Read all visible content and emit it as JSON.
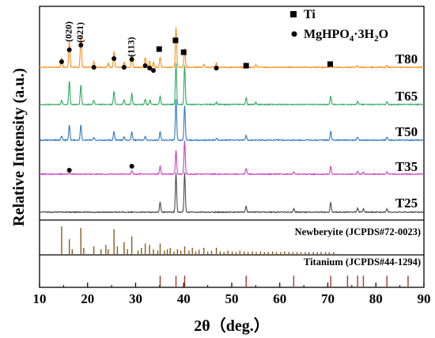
{
  "chart_data": {
    "type": "line",
    "xlabel": "2θ（deg.）",
    "ylabel": "Relative Intensity (a.u.)",
    "xlim": [
      10,
      90
    ],
    "x_ticks": [
      "10",
      "20",
      "30",
      "40",
      "50",
      "60",
      "70",
      "80",
      "90"
    ],
    "legend": [
      {
        "name": "Ti",
        "marker": "square"
      },
      {
        "name": "MgHPO4·3H2O",
        "marker": "circle"
      }
    ],
    "series": [
      {
        "name": "T80",
        "color": "#ff8c1a",
        "peaks": [
          {
            "x": 14.6,
            "h": 0.2
          },
          {
            "x": 16.2,
            "h": 0.55
          },
          {
            "x": 18.6,
            "h": 0.7
          },
          {
            "x": 21.3,
            "h": 0.12
          },
          {
            "x": 24.3,
            "h": 0.08
          },
          {
            "x": 25.5,
            "h": 0.35
          },
          {
            "x": 27.6,
            "h": 0.12
          },
          {
            "x": 29.2,
            "h": 0.28
          },
          {
            "x": 32.0,
            "h": 0.2
          },
          {
            "x": 32.9,
            "h": 0.14
          },
          {
            "x": 33.7,
            "h": 0.1
          },
          {
            "x": 35.1,
            "h": 0.22
          },
          {
            "x": 38.4,
            "h": 0.85
          },
          {
            "x": 40.2,
            "h": 0.4
          },
          {
            "x": 44.2,
            "h": 0.07
          },
          {
            "x": 46.8,
            "h": 0.09
          },
          {
            "x": 53.0,
            "h": 0.08
          },
          {
            "x": 55.0,
            "h": 0.05
          },
          {
            "x": 70.6,
            "h": 0.12
          },
          {
            "x": 76.2,
            "h": 0.04
          },
          {
            "x": 82.3,
            "h": 0.04
          }
        ]
      },
      {
        "name": "T65",
        "color": "#2eaa5c",
        "peaks": [
          {
            "x": 14.6,
            "h": 0.1
          },
          {
            "x": 16.2,
            "h": 0.55
          },
          {
            "x": 18.6,
            "h": 0.45
          },
          {
            "x": 21.3,
            "h": 0.1
          },
          {
            "x": 25.5,
            "h": 0.3
          },
          {
            "x": 27.6,
            "h": 0.1
          },
          {
            "x": 29.2,
            "h": 0.25
          },
          {
            "x": 32.0,
            "h": 0.12
          },
          {
            "x": 33.0,
            "h": 0.1
          },
          {
            "x": 35.1,
            "h": 0.2
          },
          {
            "x": 38.4,
            "h": 0.95
          },
          {
            "x": 40.2,
            "h": 0.9
          },
          {
            "x": 46.8,
            "h": 0.05
          },
          {
            "x": 53.0,
            "h": 0.15
          },
          {
            "x": 55.0,
            "h": 0.05
          },
          {
            "x": 70.6,
            "h": 0.2
          },
          {
            "x": 76.2,
            "h": 0.07
          },
          {
            "x": 82.3,
            "h": 0.07
          }
        ]
      },
      {
        "name": "T50",
        "color": "#2f78c4",
        "peaks": [
          {
            "x": 14.6,
            "h": 0.1
          },
          {
            "x": 16.2,
            "h": 0.35
          },
          {
            "x": 18.6,
            "h": 0.35
          },
          {
            "x": 21.3,
            "h": 0.06
          },
          {
            "x": 25.5,
            "h": 0.2
          },
          {
            "x": 27.6,
            "h": 0.08
          },
          {
            "x": 29.2,
            "h": 0.18
          },
          {
            "x": 32.0,
            "h": 0.08
          },
          {
            "x": 35.1,
            "h": 0.2
          },
          {
            "x": 38.4,
            "h": 0.95
          },
          {
            "x": 40.2,
            "h": 0.8
          },
          {
            "x": 46.8,
            "h": 0.04
          },
          {
            "x": 53.0,
            "h": 0.12
          },
          {
            "x": 70.6,
            "h": 0.2
          },
          {
            "x": 76.2,
            "h": 0.07
          },
          {
            "x": 82.3,
            "h": 0.07
          }
        ]
      },
      {
        "name": "T35",
        "color": "#cc3fc4",
        "peaks": [
          {
            "x": 16.2,
            "h": 0.03
          },
          {
            "x": 29.2,
            "h": 0.08
          },
          {
            "x": 35.1,
            "h": 0.2
          },
          {
            "x": 38.4,
            "h": 0.6
          },
          {
            "x": 40.2,
            "h": 0.85
          },
          {
            "x": 53.0,
            "h": 0.15
          },
          {
            "x": 62.9,
            "h": 0.06
          },
          {
            "x": 70.6,
            "h": 0.2
          },
          {
            "x": 76.2,
            "h": 0.07
          },
          {
            "x": 77.4,
            "h": 0.05
          },
          {
            "x": 82.3,
            "h": 0.07
          }
        ]
      },
      {
        "name": "T25",
        "color": "#4a4a4a",
        "peaks": [
          {
            "x": 35.1,
            "h": 0.25
          },
          {
            "x": 38.4,
            "h": 1.0
          },
          {
            "x": 40.2,
            "h": 1.0
          },
          {
            "x": 53.0,
            "h": 0.15
          },
          {
            "x": 62.9,
            "h": 0.08
          },
          {
            "x": 70.6,
            "h": 0.25
          },
          {
            "x": 76.2,
            "h": 0.1
          },
          {
            "x": 77.4,
            "h": 0.08
          },
          {
            "x": 82.3,
            "h": 0.08
          }
        ]
      }
    ],
    "markers": {
      "ti": [
        34.9,
        38.3,
        40.0,
        53.0,
        70.5
      ],
      "mg_T80": [
        14.6,
        16.2,
        18.6,
        21.3,
        25.5,
        27.6,
        29.2,
        32.0,
        32.9,
        33.7,
        46.8
      ],
      "mg_T35": [
        16.2,
        29.2
      ],
      "miller": [
        {
          "x": 16.2,
          "text": "(020)"
        },
        {
          "x": 18.6,
          "text": "(021)"
        },
        {
          "x": 29.2,
          "text": "(113)"
        }
      ]
    },
    "references": [
      {
        "name": "Newberyite (JCPDS#72-0023)",
        "color": "#8b5a1e",
        "lines": [
          {
            "x": 14.6,
            "h": 1.0
          },
          {
            "x": 16.2,
            "h": 0.55
          },
          {
            "x": 16.8,
            "h": 0.2
          },
          {
            "x": 18.6,
            "h": 0.95
          },
          {
            "x": 19.2,
            "h": 0.25
          },
          {
            "x": 21.3,
            "h": 0.3
          },
          {
            "x": 22.8,
            "h": 0.2
          },
          {
            "x": 23.8,
            "h": 0.35
          },
          {
            "x": 24.3,
            "h": 0.2
          },
          {
            "x": 25.5,
            "h": 0.9
          },
          {
            "x": 26.2,
            "h": 0.3
          },
          {
            "x": 27.6,
            "h": 0.45
          },
          {
            "x": 28.3,
            "h": 0.2
          },
          {
            "x": 29.2,
            "h": 0.65
          },
          {
            "x": 30.5,
            "h": 0.15
          },
          {
            "x": 31.2,
            "h": 0.25
          },
          {
            "x": 32.0,
            "h": 0.4
          },
          {
            "x": 32.9,
            "h": 0.35
          },
          {
            "x": 33.7,
            "h": 0.2
          },
          {
            "x": 34.6,
            "h": 0.15
          },
          {
            "x": 35.1,
            "h": 0.4
          },
          {
            "x": 36.0,
            "h": 0.15
          },
          {
            "x": 36.6,
            "h": 0.2
          },
          {
            "x": 37.2,
            "h": 0.25
          },
          {
            "x": 38.0,
            "h": 0.12
          },
          {
            "x": 38.7,
            "h": 0.2
          },
          {
            "x": 39.4,
            "h": 0.15
          },
          {
            "x": 40.2,
            "h": 0.3
          },
          {
            "x": 41.1,
            "h": 0.15
          },
          {
            "x": 41.8,
            "h": 0.25
          },
          {
            "x": 42.5,
            "h": 0.12
          },
          {
            "x": 43.2,
            "h": 0.18
          },
          {
            "x": 44.2,
            "h": 0.25
          },
          {
            "x": 45.0,
            "h": 0.12
          },
          {
            "x": 45.8,
            "h": 0.15
          },
          {
            "x": 46.8,
            "h": 0.25
          },
          {
            "x": 47.6,
            "h": 0.12
          },
          {
            "x": 48.4,
            "h": 0.1
          },
          {
            "x": 49.2,
            "h": 0.15
          },
          {
            "x": 50.1,
            "h": 0.12
          },
          {
            "x": 50.9,
            "h": 0.1
          },
          {
            "x": 51.7,
            "h": 0.15
          },
          {
            "x": 52.6,
            "h": 0.12
          },
          {
            "x": 53.4,
            "h": 0.1
          },
          {
            "x": 54.3,
            "h": 0.12
          },
          {
            "x": 55.1,
            "h": 0.1
          },
          {
            "x": 56.0,
            "h": 0.12
          },
          {
            "x": 56.8,
            "h": 0.1
          },
          {
            "x": 57.6,
            "h": 0.1
          },
          {
            "x": 58.5,
            "h": 0.12
          },
          {
            "x": 59.3,
            "h": 0.1
          },
          {
            "x": 60.2,
            "h": 0.1
          },
          {
            "x": 61.0,
            "h": 0.12
          },
          {
            "x": 61.9,
            "h": 0.1
          },
          {
            "x": 62.7,
            "h": 0.1
          },
          {
            "x": 63.6,
            "h": 0.1
          },
          {
            "x": 64.4,
            "h": 0.1
          },
          {
            "x": 65.3,
            "h": 0.1
          },
          {
            "x": 66.1,
            "h": 0.1
          },
          {
            "x": 67.0,
            "h": 0.1
          },
          {
            "x": 67.8,
            "h": 0.1
          },
          {
            "x": 68.6,
            "h": 0.1
          },
          {
            "x": 69.5,
            "h": 0.1
          },
          {
            "x": 70.3,
            "h": 0.1
          },
          {
            "x": 71.2,
            "h": 0.1
          }
        ]
      },
      {
        "name": "Titanium (JCPDS#44-1294)",
        "color": "#a33a2a",
        "lines": [
          {
            "x": 35.1,
            "h": 0.35
          },
          {
            "x": 38.4,
            "h": 0.35
          },
          {
            "x": 40.2,
            "h": 0.35
          },
          {
            "x": 53.0,
            "h": 0.35
          },
          {
            "x": 62.9,
            "h": 0.35
          },
          {
            "x": 70.6,
            "h": 0.35
          },
          {
            "x": 74.1,
            "h": 0.35
          },
          {
            "x": 76.2,
            "h": 0.35
          },
          {
            "x": 77.4,
            "h": 0.35
          },
          {
            "x": 82.3,
            "h": 0.35
          },
          {
            "x": 86.7,
            "h": 0.35
          }
        ]
      }
    ]
  }
}
